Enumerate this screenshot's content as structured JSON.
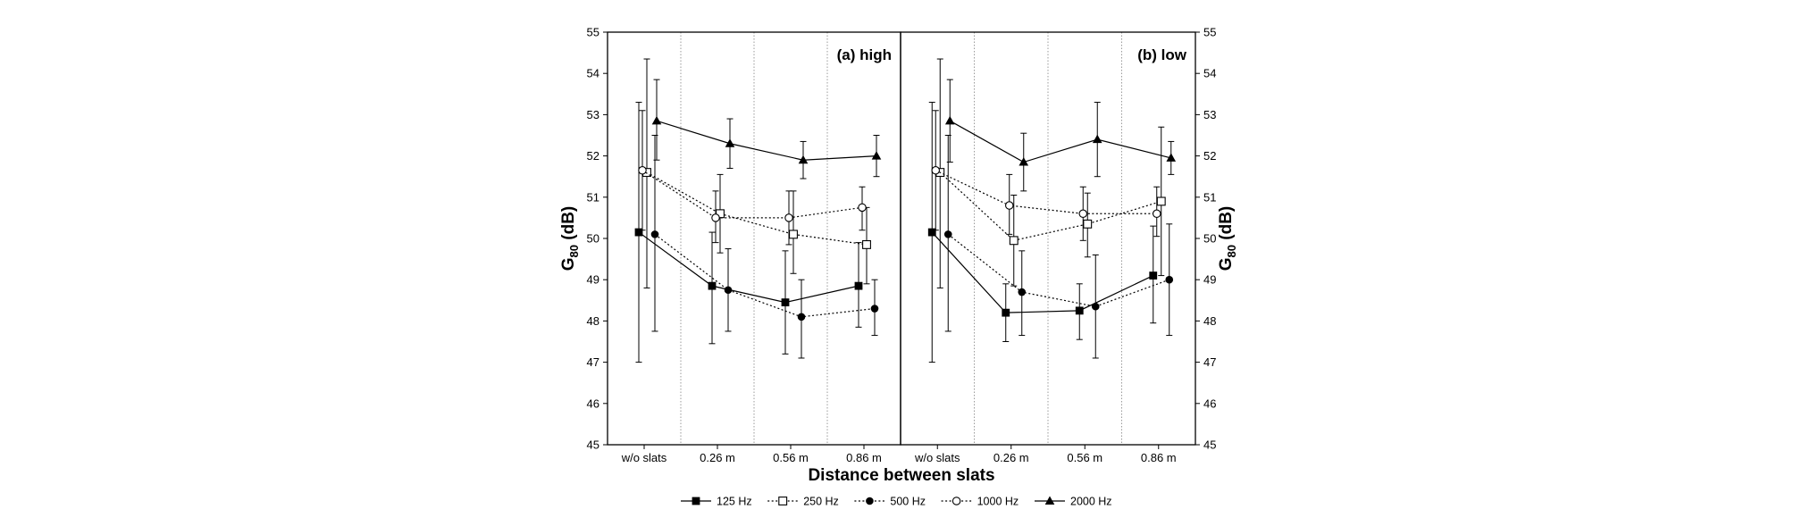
{
  "chart_data": {
    "type": "line",
    "xlabel": "Distance between slats",
    "ylabel_left": "G80 (dB)",
    "ylabel_right": "G80 (dB)",
    "ylabel_main": "G",
    "ylabel_sub": "80",
    "ylabel_unit": " (dB)",
    "ylim": [
      45,
      55
    ],
    "yticks": [
      45,
      46,
      47,
      48,
      49,
      50,
      51,
      52,
      53,
      54,
      55
    ],
    "categories": [
      "w/o slats",
      "0.26 m",
      "0.56 m",
      "0.86 m"
    ],
    "grid": "vertical dotted separators between categories",
    "legend_position": "bottom",
    "series_styles": [
      {
        "name": "125 Hz",
        "marker": "square-filled",
        "line": "solid"
      },
      {
        "name": "250 Hz",
        "marker": "square-open",
        "line": "dotted"
      },
      {
        "name": "500 Hz",
        "marker": "circle-filled",
        "line": "dotted"
      },
      {
        "name": "1000 Hz",
        "marker": "circle-open",
        "line": "dotted"
      },
      {
        "name": "2000 Hz",
        "marker": "triangle-filled",
        "line": "solid"
      }
    ],
    "panels": [
      {
        "label": "(a) high",
        "series": [
          {
            "name": "125 Hz",
            "values": [
              50.15,
              48.85,
              48.45,
              48.85
            ],
            "err_low": [
              47.0,
              47.45,
              47.2,
              47.85
            ],
            "err_high": [
              53.3,
              50.15,
              49.7,
              49.9
            ]
          },
          {
            "name": "250 Hz",
            "values": [
              51.6,
              50.6,
              50.1,
              49.85
            ],
            "err_low": [
              48.8,
              49.65,
              49.15,
              48.9
            ],
            "err_high": [
              54.35,
              51.55,
              51.15,
              50.75
            ]
          },
          {
            "name": "500 Hz",
            "values": [
              50.1,
              48.75,
              48.1,
              48.3
            ],
            "err_low": [
              47.75,
              47.75,
              47.1,
              47.65
            ],
            "err_high": [
              52.5,
              49.75,
              49.0,
              49.0
            ]
          },
          {
            "name": "1000 Hz",
            "values": [
              51.65,
              50.5,
              50.5,
              50.75
            ],
            "err_low": [
              50.2,
              49.9,
              49.85,
              50.2
            ],
            "err_high": [
              53.1,
              51.15,
              51.15,
              51.25
            ]
          },
          {
            "name": "2000 Hz",
            "values": [
              52.85,
              52.3,
              51.9,
              52.0
            ],
            "err_low": [
              51.9,
              51.7,
              51.45,
              51.5
            ],
            "err_high": [
              53.85,
              52.9,
              52.35,
              52.5
            ]
          }
        ]
      },
      {
        "label": "(b) low",
        "series": [
          {
            "name": "125 Hz",
            "values": [
              50.15,
              48.2,
              48.25,
              49.1
            ],
            "err_low": [
              47.0,
              47.5,
              47.55,
              47.95
            ],
            "err_high": [
              53.3,
              48.9,
              48.9,
              50.3
            ]
          },
          {
            "name": "250 Hz",
            "values": [
              51.6,
              49.95,
              50.35,
              50.9
            ],
            "err_low": [
              48.8,
              48.85,
              49.55,
              49.1
            ],
            "err_high": [
              54.35,
              51.05,
              51.1,
              52.7
            ]
          },
          {
            "name": "500 Hz",
            "values": [
              50.1,
              48.7,
              48.35,
              49.0
            ],
            "err_low": [
              47.75,
              47.65,
              47.1,
              47.65
            ],
            "err_high": [
              52.5,
              49.7,
              49.6,
              50.35
            ]
          },
          {
            "name": "1000 Hz",
            "values": [
              51.65,
              50.8,
              50.6,
              50.6
            ],
            "err_low": [
              50.2,
              50.1,
              49.95,
              50.05
            ],
            "err_high": [
              53.1,
              51.55,
              51.25,
              51.25
            ]
          },
          {
            "name": "2000 Hz",
            "values": [
              52.85,
              51.85,
              52.4,
              51.95
            ],
            "err_low": [
              51.85,
              51.15,
              51.5,
              51.55
            ],
            "err_high": [
              53.85,
              52.55,
              53.3,
              52.35
            ]
          }
        ]
      }
    ],
    "legend": [
      {
        "name": "125 Hz"
      },
      {
        "name": "250 Hz"
      },
      {
        "name": "500 Hz"
      },
      {
        "name": "1000 Hz"
      },
      {
        "name": "2000 Hz"
      }
    ]
  }
}
